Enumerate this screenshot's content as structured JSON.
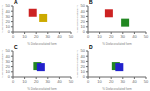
{
  "chart_data": [
    {
      "type": "scatter",
      "title": "A",
      "x_label": "% Diglycosylated form",
      "y_label": "% Monoglycosylated form",
      "marker": "square",
      "x": [
        17,
        26
      ],
      "values": [
        37,
        27
      ],
      "xerr": [
        0.5,
        1.0
      ],
      "yerr": [
        0.5,
        1.0
      ],
      "colors": [
        "#cc2222",
        "#ccaa00"
      ],
      "xlim": [
        0,
        50
      ],
      "ylim": [
        0,
        50
      ],
      "xticks": [
        0,
        10,
        20,
        30,
        40,
        50
      ],
      "yticks": [
        0,
        10,
        20,
        30,
        40,
        50
      ]
    },
    {
      "type": "scatter",
      "title": "B",
      "x_label": "% Diglycosylated form",
      "y_label": "% Monoglycosylated form",
      "marker": "square",
      "x": [
        18,
        32
      ],
      "values": [
        36,
        18
      ],
      "xerr": [
        1.0,
        1.0
      ],
      "yerr": [
        1.5,
        1.0
      ],
      "colors": [
        "#cc2222",
        "#228822"
      ],
      "xlim": [
        0,
        50
      ],
      "ylim": [
        0,
        50
      ],
      "xticks": [
        0,
        10,
        20,
        30,
        40,
        50
      ],
      "yticks": [
        0,
        10,
        20,
        30,
        40,
        50
      ]
    },
    {
      "type": "scatter",
      "title": "C",
      "x_label": "% Diglycosylated form",
      "y_label": "% Monoglycosylated form",
      "marker": "square",
      "x": [
        21,
        24
      ],
      "values": [
        21,
        19
      ],
      "xerr": [
        1.5,
        1.0
      ],
      "yerr": [
        1.0,
        1.0
      ],
      "colors": [
        "#228822",
        "#2222cc"
      ],
      "xlim": [
        0,
        50
      ],
      "ylim": [
        0,
        50
      ],
      "xticks": [
        0,
        10,
        20,
        30,
        40,
        50
      ],
      "yticks": [
        0,
        10,
        20,
        30,
        40,
        50
      ]
    },
    {
      "type": "scatter",
      "title": "D",
      "x_label": "% Diglycosylated form",
      "y_label": "% Monoglycosylated form",
      "marker": "square",
      "x": [
        24,
        27
      ],
      "values": [
        21,
        19
      ],
      "xerr": [
        1.5,
        1.5
      ],
      "yerr": [
        1.0,
        1.0
      ],
      "colors": [
        "#228822",
        "#2222cc"
      ],
      "xlim": [
        0,
        50
      ],
      "ylim": [
        0,
        50
      ],
      "xticks": [
        0,
        10,
        20,
        30,
        40,
        50
      ],
      "yticks": [
        0,
        10,
        20,
        30,
        40,
        50
      ]
    }
  ]
}
